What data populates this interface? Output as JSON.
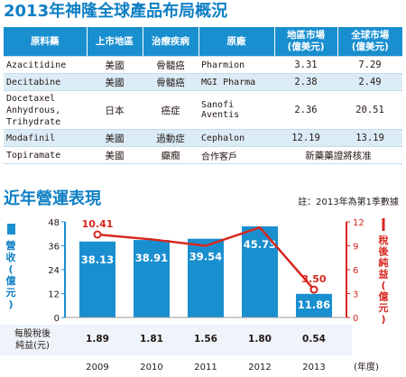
{
  "section1_title": "2013年神隆全球產品布局概況",
  "section2_title": "近年營運表現",
  "note": "註：2013年為第1季數據",
  "table": {
    "headers": [
      "原料藥",
      "上市地區",
      "治療疾病",
      "原廠",
      "地區市場\n(億美元)",
      "全球市場\n(億美元)"
    ],
    "rows": [
      {
        "drug": "Azacitidine",
        "region": "美國",
        "disease": "骨髓癌",
        "originator": "Pharmion",
        "regional": "3.31",
        "global": "7.29"
      },
      {
        "drug": "Decitabine",
        "region": "美國",
        "disease": "骨髓癌",
        "originator": "MGI Pharma",
        "regional": "2.38",
        "global": "2.49"
      },
      {
        "drug": "Docetaxel\nAnhydrous,\nTrihydrate",
        "region": "日本",
        "disease": "癌症",
        "originator": "Sanofi\nAventis",
        "regional": "2.36",
        "global": "20.51"
      },
      {
        "drug": "Modafinil",
        "region": "美國",
        "disease": "過動症",
        "originator": "Cephalon",
        "regional": "12.19",
        "global": "13.19"
      },
      {
        "drug": "Topiramate",
        "region": "美國",
        "disease": "癲癇",
        "originator": "合作客戶",
        "merged": "新藥藥證將核准"
      }
    ]
  },
  "chart_data": {
    "type": "bar",
    "categories": [
      "2009",
      "2010",
      "2011",
      "2012",
      "2013"
    ],
    "x_unit_label": "(年度)",
    "series": [
      {
        "name": "營收(億元)",
        "type": "bar",
        "axis": "left",
        "values": [
          38.13,
          38.91,
          39.54,
          45.73,
          11.86
        ],
        "color": "#1a8fd0"
      },
      {
        "name": "稅後純益(億元)",
        "type": "line",
        "axis": "right",
        "values": [
          10.41,
          null,
          null,
          null,
          3.5
        ],
        "color": "#d7261e"
      }
    ],
    "line_values_estimated": [
      10.41,
      9.8,
      9.0,
      11.3,
      3.5
    ],
    "eps_label": "每股稅後\n純益(元)",
    "eps": [
      "1.89",
      "1.81",
      "1.56",
      "1.80",
      "0.54"
    ],
    "left_ylim": [
      0,
      48
    ],
    "left_ticks": [
      "0",
      "12",
      "24",
      "36",
      "48"
    ],
    "right_ylim": [
      0,
      12
    ],
    "right_ticks": [
      "0",
      "3",
      "6",
      "9",
      "12"
    ],
    "left_ylabel": "營收(億元)",
    "right_ylabel": "稅後純益(億元)",
    "bar_labels": [
      "38.13",
      "38.91",
      "39.54",
      "45.73",
      "11.86"
    ],
    "line_labels": [
      "10.41",
      "",
      "",
      "",
      "3.50"
    ]
  }
}
